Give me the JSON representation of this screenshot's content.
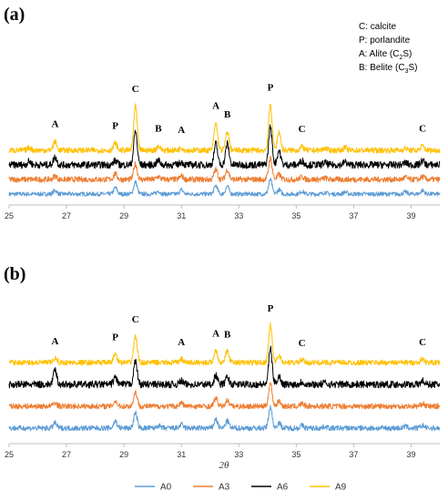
{
  "chart_data": [
    {
      "type": "line",
      "panel_label": "(a)",
      "xlim": [
        25,
        40
      ],
      "x_ticks": [
        25,
        27,
        29,
        31,
        33,
        35,
        37,
        39
      ],
      "grid": false,
      "key": [
        {
          "text": "C: calcite"
        },
        {
          "text": "P: porlandite"
        },
        {
          "text": "A: Alite (C",
          "sub": "2",
          "after": "S)"
        },
        {
          "text": "B: Belite (C",
          "sub": "3",
          "after": "S)"
        }
      ],
      "peak_labels": [
        {
          "label": "A",
          "x": 26.6
        },
        {
          "label": "P",
          "x": 28.7
        },
        {
          "label": "C",
          "x": 29.4
        },
        {
          "label": "B",
          "x": 30.2
        },
        {
          "label": "A",
          "x": 31.0
        },
        {
          "label": "A",
          "x": 32.2
        },
        {
          "label": "B",
          "x": 32.6
        },
        {
          "label": "P",
          "x": 34.1
        },
        {
          "label": "C",
          "x": 35.2
        },
        {
          "label": "C",
          "x": 39.4
        }
      ],
      "series": [
        {
          "name": "A0",
          "color": "#5B9BD5",
          "base": 0,
          "spike": 0.3,
          "peaks": [
            [
              26.6,
              0.25
            ],
            [
              28.7,
              0.45
            ],
            [
              29.4,
              0.85
            ],
            [
              30.2,
              0.2
            ],
            [
              31.0,
              0.3
            ],
            [
              32.2,
              0.6
            ],
            [
              32.6,
              0.55
            ],
            [
              34.1,
              1.0
            ],
            [
              34.4,
              0.3
            ],
            [
              35.2,
              0.2
            ],
            [
              36.0,
              0.12
            ],
            [
              36.7,
              0.14
            ],
            [
              38.8,
              0.15
            ],
            [
              39.4,
              0.25
            ]
          ]
        },
        {
          "name": "A3",
          "color": "#ED7D31",
          "base": 1,
          "spike": 0.4,
          "peaks": [
            [
              26.6,
              0.25
            ],
            [
              28.7,
              0.4
            ],
            [
              29.4,
              1.1
            ],
            [
              30.2,
              0.2
            ],
            [
              31.0,
              0.25
            ],
            [
              32.2,
              0.7
            ],
            [
              32.6,
              0.7
            ],
            [
              34.1,
              1.5
            ],
            [
              34.4,
              0.35
            ],
            [
              35.2,
              0.2
            ],
            [
              36.0,
              0.1
            ],
            [
              38.8,
              0.15
            ],
            [
              39.4,
              0.2
            ]
          ]
        },
        {
          "name": "A6",
          "color": "#000000",
          "base": 2,
          "spike": 0.5,
          "peaks": [
            [
              25.7,
              0.25
            ],
            [
              26.6,
              0.55
            ],
            [
              28.7,
              0.3
            ],
            [
              29.4,
              2.4
            ],
            [
              30.2,
              0.3
            ],
            [
              31.0,
              0.2
            ],
            [
              32.2,
              1.5
            ],
            [
              32.6,
              1.5
            ],
            [
              34.1,
              2.7
            ],
            [
              34.4,
              1.0
            ],
            [
              35.2,
              0.3
            ],
            [
              36.0,
              0.15
            ],
            [
              36.7,
              0.2
            ],
            [
              38.8,
              0.15
            ],
            [
              39.4,
              0.3
            ]
          ]
        },
        {
          "name": "A9",
          "color": "#FFC000",
          "base": 3,
          "spike": 0.4,
          "peaks": [
            [
              25.7,
              0.2
            ],
            [
              26.6,
              0.6
            ],
            [
              28.7,
              0.5
            ],
            [
              29.4,
              3.1
            ],
            [
              30.2,
              0.3
            ],
            [
              31.0,
              0.2
            ],
            [
              32.2,
              1.9
            ],
            [
              32.6,
              1.3
            ],
            [
              34.1,
              3.2
            ],
            [
              34.4,
              1.3
            ],
            [
              35.2,
              0.25
            ],
            [
              36.0,
              0.15
            ],
            [
              36.7,
              0.2
            ],
            [
              38.8,
              0.15
            ],
            [
              39.4,
              0.3
            ]
          ]
        }
      ]
    },
    {
      "type": "line",
      "panel_label": "(b)",
      "xlim": [
        25,
        40
      ],
      "x_ticks": [
        25,
        27,
        29,
        31,
        33,
        35,
        37,
        39
      ],
      "grid": false,
      "xlabel": "2θ",
      "peak_labels": [
        {
          "label": "A",
          "x": 26.6
        },
        {
          "label": "P",
          "x": 28.7
        },
        {
          "label": "C",
          "x": 29.4
        },
        {
          "label": "A",
          "x": 31.0
        },
        {
          "label": "A",
          "x": 32.2
        },
        {
          "label": "B",
          "x": 32.6
        },
        {
          "label": "P",
          "x": 34.1
        },
        {
          "label": "C",
          "x": 35.2
        },
        {
          "label": "C",
          "x": 39.4
        }
      ],
      "series": [
        {
          "name": "A0",
          "color": "#5B9BD5",
          "base": 0,
          "spike": 0.3,
          "peaks": [
            [
              26.6,
              0.3
            ],
            [
              28.7,
              0.4
            ],
            [
              29.4,
              0.85
            ],
            [
              30.2,
              0.15
            ],
            [
              31.0,
              0.2
            ],
            [
              32.2,
              0.5
            ],
            [
              32.6,
              0.4
            ],
            [
              34.1,
              1.2
            ],
            [
              34.4,
              0.3
            ],
            [
              35.2,
              0.15
            ],
            [
              36.0,
              0.1
            ],
            [
              38.8,
              0.1
            ],
            [
              39.4,
              0.15
            ]
          ]
        },
        {
          "name": "A3",
          "color": "#ED7D31",
          "base": 1,
          "spike": 0.3,
          "peaks": [
            [
              26.6,
              0.2
            ],
            [
              28.7,
              0.3
            ],
            [
              29.4,
              0.8
            ],
            [
              31.0,
              0.2
            ],
            [
              32.2,
              0.45
            ],
            [
              32.6,
              0.35
            ],
            [
              34.1,
              1.3
            ],
            [
              34.4,
              0.3
            ],
            [
              35.2,
              0.15
            ],
            [
              39.4,
              0.15
            ]
          ]
        },
        {
          "name": "A6",
          "color": "#000000",
          "base": 2,
          "spike": 0.4,
          "peaks": [
            [
              26.6,
              0.8
            ],
            [
              28.7,
              0.4
            ],
            [
              29.4,
              1.3
            ],
            [
              31.0,
              0.2
            ],
            [
              32.2,
              0.5
            ],
            [
              32.6,
              0.4
            ],
            [
              34.1,
              2.0
            ],
            [
              34.4,
              0.45
            ],
            [
              35.2,
              0.15
            ],
            [
              36.0,
              0.1
            ],
            [
              39.4,
              0.2
            ]
          ]
        },
        {
          "name": "A9",
          "color": "#FFC000",
          "base": 3,
          "spike": 0.3,
          "peaks": [
            [
              26.6,
              0.25
            ],
            [
              28.7,
              0.5
            ],
            [
              29.4,
              1.5
            ],
            [
              31.0,
              0.2
            ],
            [
              32.2,
              0.7
            ],
            [
              32.6,
              0.65
            ],
            [
              34.1,
              2.1
            ],
            [
              34.4,
              0.4
            ],
            [
              35.2,
              0.15
            ],
            [
              39.4,
              0.2
            ]
          ]
        }
      ]
    }
  ],
  "legend": [
    {
      "name": "A0",
      "color": "#5B9BD5"
    },
    {
      "name": "A3",
      "color": "#ED7D31"
    },
    {
      "name": "A6",
      "color": "#000000"
    },
    {
      "name": "A9",
      "color": "#FFC000"
    }
  ]
}
